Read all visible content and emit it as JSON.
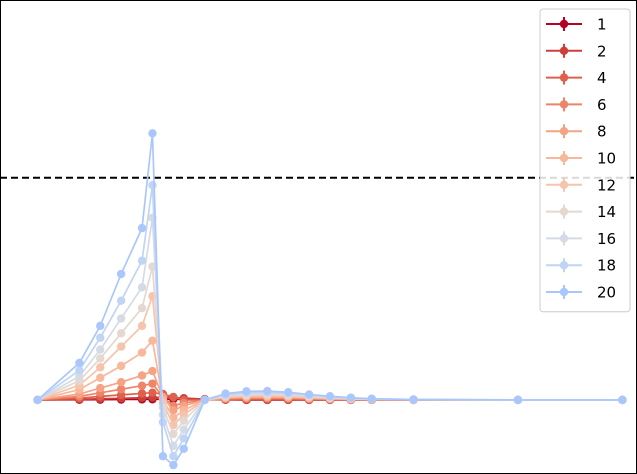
{
  "chart_data": {
    "type": "line",
    "title": "",
    "xlabel": "",
    "ylabel": "",
    "grid": false,
    "legend_position": "top-right",
    "x": [
      0,
      2,
      3,
      4,
      5,
      5.5,
      6,
      6.5,
      7,
      8,
      9,
      10,
      11,
      12,
      13,
      14,
      15,
      16,
      18,
      23,
      28
    ],
    "xlim": [
      -1.8,
      28.7
    ],
    "ylim": [
      -0.5,
      2.7
    ],
    "reference_line": {
      "y": 1.5,
      "style": "dashed",
      "color": "#000000"
    },
    "series": [
      {
        "name": "1",
        "color": "#b40426",
        "values": [
          0.0,
          0.001,
          0.002,
          0.003,
          0.004,
          0.0045,
          0.005,
          0.005,
          0.004,
          0.002,
          0.001,
          0.0,
          0.0,
          0.0,
          0.0,
          0.0,
          0.0,
          0.0,
          0.0,
          0.0,
          0.0
        ]
      },
      {
        "name": "2",
        "color": "#cc403a",
        "values": [
          0.0,
          0.004,
          0.008,
          0.011,
          0.015,
          0.017,
          0.018,
          0.017,
          0.012,
          0.006,
          0.002,
          0.0,
          0.0,
          0.0,
          0.0,
          0.0,
          0.0,
          0.0,
          0.0,
          0.0,
          0.0
        ]
      },
      {
        "name": "4",
        "color": "#de604d",
        "values": [
          0.0,
          0.012,
          0.024,
          0.034,
          0.044,
          0.049,
          0.04,
          0.02,
          0.0,
          0.0,
          0.004,
          0.006,
          0.006,
          0.005,
          0.003,
          0.002,
          0.001,
          0.001,
          0.0,
          0.0,
          0.0
        ]
      },
      {
        "name": "6",
        "color": "#ee8468",
        "values": [
          0.0,
          0.024,
          0.048,
          0.072,
          0.096,
          0.11,
          0.02,
          -0.04,
          -0.02,
          0.0,
          0.008,
          0.011,
          0.012,
          0.01,
          0.007,
          0.004,
          0.002,
          0.001,
          0.0,
          0.0,
          0.0
        ]
      },
      {
        "name": "8",
        "color": "#f6a385",
        "values": [
          0.0,
          0.04,
          0.08,
          0.12,
          0.165,
          0.195,
          0.02,
          -0.07,
          -0.04,
          0.0,
          0.012,
          0.017,
          0.018,
          0.016,
          0.011,
          0.007,
          0.004,
          0.002,
          0.001,
          0.0,
          0.0
        ]
      },
      {
        "name": "10",
        "color": "#f7b89c",
        "values": [
          0.0,
          0.07,
          0.15,
          0.23,
          0.32,
          0.4,
          0.0,
          -0.12,
          -0.07,
          0.0,
          0.016,
          0.022,
          0.024,
          0.021,
          0.015,
          0.01,
          0.006,
          0.003,
          0.001,
          0.0,
          0.0
        ]
      },
      {
        "name": "12",
        "color": "#f5c4ac",
        "values": [
          0.0,
          0.1,
          0.22,
          0.36,
          0.5,
          0.7,
          -0.02,
          -0.17,
          -0.1,
          0.0,
          0.02,
          0.027,
          0.03,
          0.026,
          0.019,
          0.012,
          0.007,
          0.004,
          0.001,
          0.0,
          0.0
        ]
      },
      {
        "name": "14",
        "color": "#e5d8d1",
        "values": [
          0.0,
          0.13,
          0.28,
          0.45,
          0.62,
          0.9,
          -0.05,
          -0.23,
          -0.14,
          0.0,
          0.025,
          0.034,
          0.037,
          0.032,
          0.023,
          0.015,
          0.009,
          0.005,
          0.002,
          0.0,
          0.0
        ]
      },
      {
        "name": "16",
        "color": "#d5dbe5",
        "values": [
          0.0,
          0.16,
          0.34,
          0.55,
          0.76,
          1.23,
          -0.1,
          -0.31,
          -0.2,
          0.0,
          0.03,
          0.041,
          0.044,
          0.038,
          0.027,
          0.018,
          0.011,
          0.006,
          0.002,
          0.0,
          0.0
        ]
      },
      {
        "name": "18",
        "color": "#c0d4f5",
        "values": [
          0.0,
          0.2,
          0.42,
          0.67,
          0.94,
          1.45,
          -0.15,
          -0.38,
          -0.26,
          0.0,
          0.036,
          0.05,
          0.052,
          0.045,
          0.032,
          0.021,
          0.013,
          0.007,
          0.003,
          0.0,
          0.0
        ]
      },
      {
        "name": "20",
        "color": "#aac7fd",
        "values": [
          0.0,
          0.25,
          0.5,
          0.85,
          1.16,
          1.8,
          -0.38,
          -0.44,
          -0.33,
          0.0,
          0.043,
          0.058,
          0.06,
          0.052,
          0.037,
          0.025,
          0.015,
          0.008,
          0.003,
          0.0,
          0.0
        ]
      }
    ]
  }
}
